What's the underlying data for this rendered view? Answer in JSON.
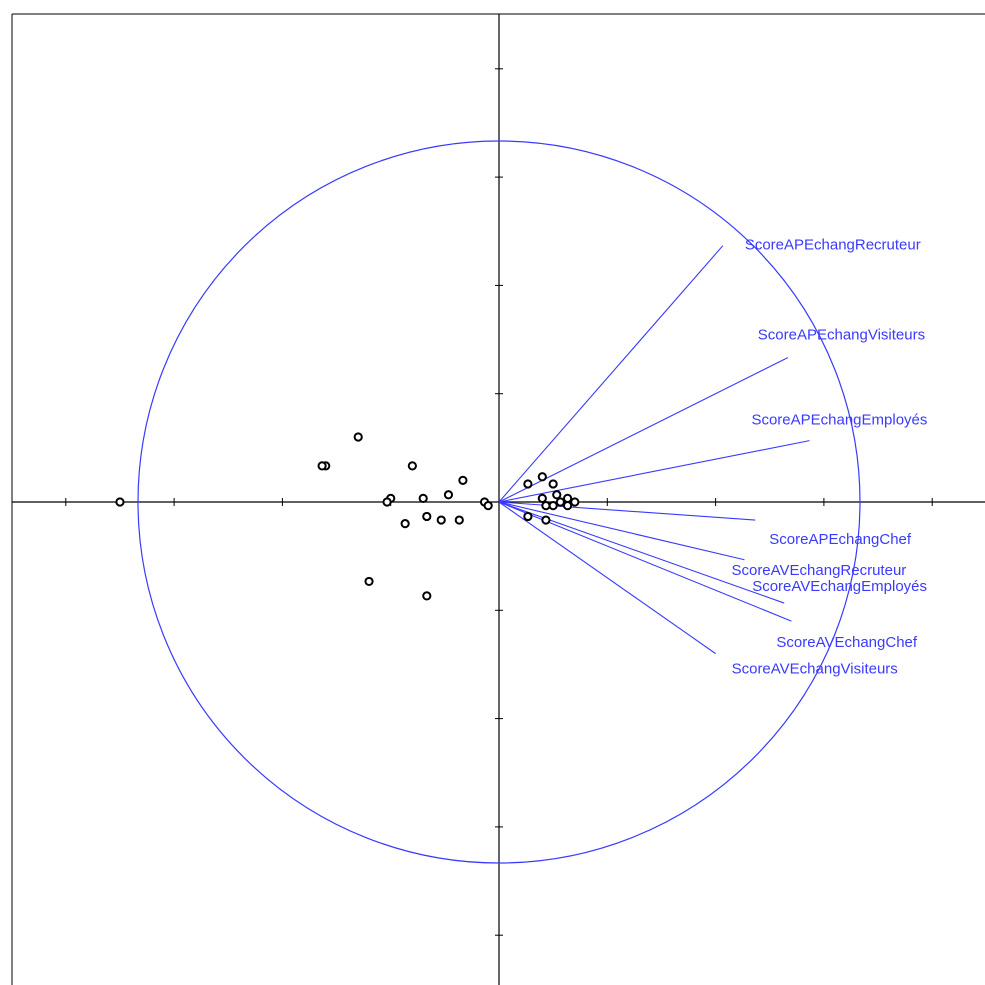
{
  "chart_data": {
    "type": "scatter",
    "title": "",
    "xlabel": "",
    "ylabel": "",
    "xlim": [
      -1.35,
      1.35
    ],
    "ylim": [
      -1.35,
      1.35
    ],
    "grid": false,
    "colors": {
      "circle": "#3a3aff",
      "vectors": "#3a3aff",
      "labels": "#3a3aff",
      "points": "#000000",
      "axes": "#000000"
    },
    "correlation_circle": {
      "radius": 1
    },
    "variables": [
      {
        "name": "ScoreAPEchangRecruteur",
        "x": 0.62,
        "y": 0.71
      },
      {
        "name": "ScoreAPEchangVisiteurs",
        "x": 0.8,
        "y": 0.4
      },
      {
        "name": "ScoreAPEchangEmployés",
        "x": 0.86,
        "y": 0.17
      },
      {
        "name": "ScoreAPEchangChef",
        "x": 0.71,
        "y": -0.05
      },
      {
        "name": "ScoreAVEchangRecruteur",
        "x": 0.68,
        "y": -0.16
      },
      {
        "name": "ScoreAVEchangEmployés",
        "x": 0.79,
        "y": -0.28
      },
      {
        "name": "ScoreAVEchangChef",
        "x": 0.81,
        "y": -0.33
      },
      {
        "name": "ScoreAVEchangVisiteurs",
        "x": 0.6,
        "y": -0.42
      }
    ],
    "points": [
      {
        "x": -1.05,
        "y": 0.0
      },
      {
        "x": -0.48,
        "y": 0.1
      },
      {
        "x": -0.49,
        "y": 0.1
      },
      {
        "x": -0.39,
        "y": 0.18
      },
      {
        "x": -0.24,
        "y": 0.1
      },
      {
        "x": -0.3,
        "y": 0.01
      },
      {
        "x": -0.31,
        "y": 0.0
      },
      {
        "x": -0.21,
        "y": 0.01
      },
      {
        "x": -0.14,
        "y": 0.02
      },
      {
        "x": -0.1,
        "y": 0.06
      },
      {
        "x": -0.26,
        "y": -0.06
      },
      {
        "x": -0.2,
        "y": -0.04
      },
      {
        "x": -0.16,
        "y": -0.05
      },
      {
        "x": -0.11,
        "y": -0.05
      },
      {
        "x": -0.04,
        "y": 0.0
      },
      {
        "x": -0.03,
        "y": -0.01
      },
      {
        "x": -0.36,
        "y": -0.22
      },
      {
        "x": -0.2,
        "y": -0.26
      },
      {
        "x": 0.08,
        "y": 0.05
      },
      {
        "x": 0.12,
        "y": 0.07
      },
      {
        "x": 0.15,
        "y": 0.05
      },
      {
        "x": 0.16,
        "y": 0.02
      },
      {
        "x": 0.12,
        "y": 0.01
      },
      {
        "x": 0.13,
        "y": -0.01
      },
      {
        "x": 0.15,
        "y": -0.01
      },
      {
        "x": 0.17,
        "y": 0.0
      },
      {
        "x": 0.19,
        "y": 0.01
      },
      {
        "x": 0.19,
        "y": -0.01
      },
      {
        "x": 0.21,
        "y": 0.0
      },
      {
        "x": 0.08,
        "y": -0.04
      },
      {
        "x": 0.13,
        "y": -0.05
      }
    ]
  }
}
